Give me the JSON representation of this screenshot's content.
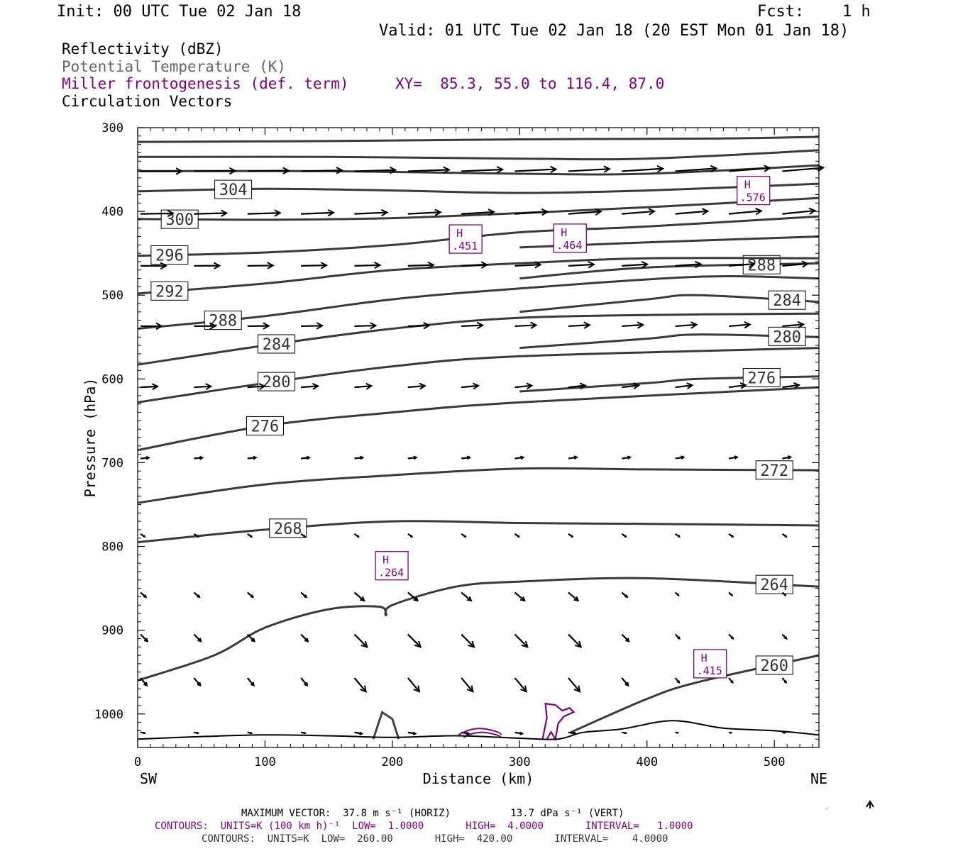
{
  "header": {
    "init": "Init: 00 UTC Tue 02 Jan 18",
    "fcst_label": "Fcst:",
    "fcst_value": "1 h",
    "valid": "Valid: 01 UTC Tue 02 Jan 18 (20 EST Mon 01 Jan 18)"
  },
  "legend": {
    "reflectivity": "Reflectivity (dBZ)",
    "theta": "Potential Temperature (K)",
    "miller": "Miller frontogenesis (def. term)",
    "xy": "XY=  85.3, 55.0 to 116.4, 87.0",
    "circulation": "Circulation Vectors"
  },
  "footer": {
    "max_vector": "MAXIMUM VECTOR:  37.8 m s⁻¹ (HORIZ)          13.7 dPa s⁻¹ (VERT)",
    "contours_purple": "CONTOURS:  UNITS=K (100 km h)⁻¹  LOW=  1.0000       HIGH=  4.0000       INTERVAL=   1.0000",
    "contours_grey": "CONTOURS:  UNITS=K  LOW=  260.00       HIGH=  420.00       INTERVAL=    4.0000"
  },
  "colors": {
    "theta": "#3a3a3a",
    "frontogenesis": "#800080",
    "vectors": "#000000"
  },
  "chart_data": {
    "type": "cross-section",
    "xlabel": "Distance (km)",
    "ylabel": "Pressure (hPa)",
    "xlim": [
      0,
      535
    ],
    "ylim": [
      1040,
      300
    ],
    "x_ticks": [
      0,
      100,
      200,
      300,
      400,
      500
    ],
    "y_ticks": [
      300,
      400,
      500,
      600,
      700,
      800,
      900,
      1000
    ],
    "x_end_labels": {
      "left": "SW",
      "right": "NE"
    },
    "theta_contours": [
      {
        "label": "",
        "points": [
          [
            0,
            317
          ],
          [
            150,
            316
          ],
          [
            300,
            314
          ],
          [
            450,
            313
          ],
          [
            535,
            311
          ]
        ]
      },
      {
        "label": "",
        "points": [
          [
            0,
            335
          ],
          [
            150,
            335
          ],
          [
            300,
            337
          ],
          [
            400,
            337
          ],
          [
            535,
            327
          ]
        ]
      },
      {
        "label": "",
        "points": [
          [
            0,
            352
          ],
          [
            150,
            352
          ],
          [
            300,
            355
          ],
          [
            400,
            355
          ],
          [
            535,
            345
          ]
        ]
      },
      {
        "label": "304",
        "label_x": 75,
        "points": [
          [
            0,
            376
          ],
          [
            100,
            373
          ],
          [
            200,
            375
          ],
          [
            300,
            378
          ],
          [
            400,
            375
          ],
          [
            535,
            367
          ]
        ]
      },
      {
        "label": "300",
        "label_x": 33,
        "points": [
          [
            0,
            409
          ],
          [
            100,
            410
          ],
          [
            200,
            408
          ],
          [
            300,
            402
          ],
          [
            400,
            395
          ],
          [
            535,
            384
          ]
        ]
      },
      {
        "label": "296",
        "label_x": 25,
        "points": [
          [
            0,
            453
          ],
          [
            100,
            449
          ],
          [
            200,
            440
          ],
          [
            300,
            425
          ],
          [
            400,
            418
          ],
          [
            535,
            406
          ]
        ]
      },
      {
        "label": "",
        "points": [
          [
            300,
            443
          ],
          [
            400,
            437
          ],
          [
            535,
            430
          ]
        ]
      },
      {
        "label": "288",
        "label_x": 490,
        "points": [
          [
            300,
            480
          ],
          [
            400,
            467
          ],
          [
            535,
            462
          ]
        ]
      },
      {
        "label": "292",
        "label_x": 25,
        "points": [
          [
            0,
            498
          ],
          [
            100,
            486
          ],
          [
            200,
            470
          ],
          [
            300,
            462
          ],
          [
            400,
            456
          ],
          [
            535,
            456
          ]
        ]
      },
      {
        "label": "284",
        "label_x": 510,
        "points": [
          [
            300,
            520
          ],
          [
            400,
            505
          ],
          [
            440,
            500
          ],
          [
            535,
            508
          ]
        ]
      },
      {
        "label": "288",
        "label_x": 67,
        "points": [
          [
            0,
            540
          ],
          [
            100,
            525
          ],
          [
            200,
            505
          ],
          [
            300,
            492
          ],
          [
            440,
            478
          ],
          [
            535,
            480
          ]
        ]
      },
      {
        "label": "280",
        "label_x": 510,
        "points": [
          [
            300,
            563
          ],
          [
            400,
            552
          ],
          [
            440,
            547
          ],
          [
            535,
            550
          ]
        ]
      },
      {
        "label": "284",
        "label_x": 109,
        "points": [
          [
            0,
            583
          ],
          [
            100,
            560
          ],
          [
            200,
            540
          ],
          [
            300,
            527
          ],
          [
            440,
            523
          ],
          [
            535,
            522
          ]
        ]
      },
      {
        "label": "276",
        "label_x": 490,
        "points": [
          [
            300,
            615
          ],
          [
            400,
            605
          ],
          [
            440,
            600
          ],
          [
            535,
            597
          ]
        ]
      },
      {
        "label": "280",
        "label_x": 109,
        "points": [
          [
            0,
            628
          ],
          [
            100,
            605
          ],
          [
            200,
            585
          ],
          [
            300,
            573
          ],
          [
            535,
            563
          ]
        ]
      },
      {
        "label": "276",
        "label_x": 100,
        "points": [
          [
            0,
            685
          ],
          [
            100,
            656
          ],
          [
            200,
            640
          ],
          [
            300,
            628
          ],
          [
            535,
            610
          ]
        ]
      },
      {
        "label": "272",
        "label_x": 500,
        "points": [
          [
            0,
            748
          ],
          [
            100,
            726
          ],
          [
            200,
            715
          ],
          [
            300,
            707
          ],
          [
            400,
            708
          ],
          [
            535,
            709
          ]
        ]
      },
      {
        "label": "268",
        "label_x": 118,
        "points": [
          [
            0,
            795
          ],
          [
            100,
            780
          ],
          [
            200,
            770
          ],
          [
            300,
            772
          ],
          [
            400,
            773
          ],
          [
            535,
            775
          ]
        ]
      },
      {
        "label": "264",
        "label_x": 500,
        "points": [
          [
            0,
            960
          ],
          [
            60,
            930
          ],
          [
            100,
            897
          ],
          [
            150,
            875
          ],
          [
            190,
            872
          ],
          [
            195,
            882
          ],
          [
            200,
            870
          ],
          [
            250,
            848
          ],
          [
            300,
            842
          ],
          [
            400,
            838
          ],
          [
            535,
            848
          ]
        ]
      },
      {
        "label": "260",
        "label_x": 500,
        "points": [
          [
            340,
            1022
          ],
          [
            400,
            982
          ],
          [
            440,
            962
          ],
          [
            535,
            930
          ]
        ]
      }
    ],
    "frontogenesis_maxima": [
      {
        "label": "H",
        "value": ".576",
        "x": 483,
        "p": 375
      },
      {
        "label": "H",
        "value": ".451",
        "x": 257,
        "p": 433
      },
      {
        "label": "H",
        "value": ".464",
        "x": 339,
        "p": 432
      },
      {
        "label": "H",
        "value": ".264",
        "x": 199,
        "p": 823
      },
      {
        "label": "H",
        "value": ".415",
        "x": 449,
        "p": 940
      }
    ],
    "terrain_hpa": [
      [
        0,
        1030
      ],
      [
        50,
        1027
      ],
      [
        100,
        1025
      ],
      [
        150,
        1026
      ],
      [
        200,
        1028
      ],
      [
        250,
        1026
      ],
      [
        300,
        1029
      ],
      [
        330,
        1030
      ],
      [
        350,
        1022
      ],
      [
        380,
        1018
      ],
      [
        420,
        1008
      ],
      [
        460,
        1017
      ],
      [
        500,
        1020
      ],
      [
        535,
        1025
      ]
    ]
  }
}
